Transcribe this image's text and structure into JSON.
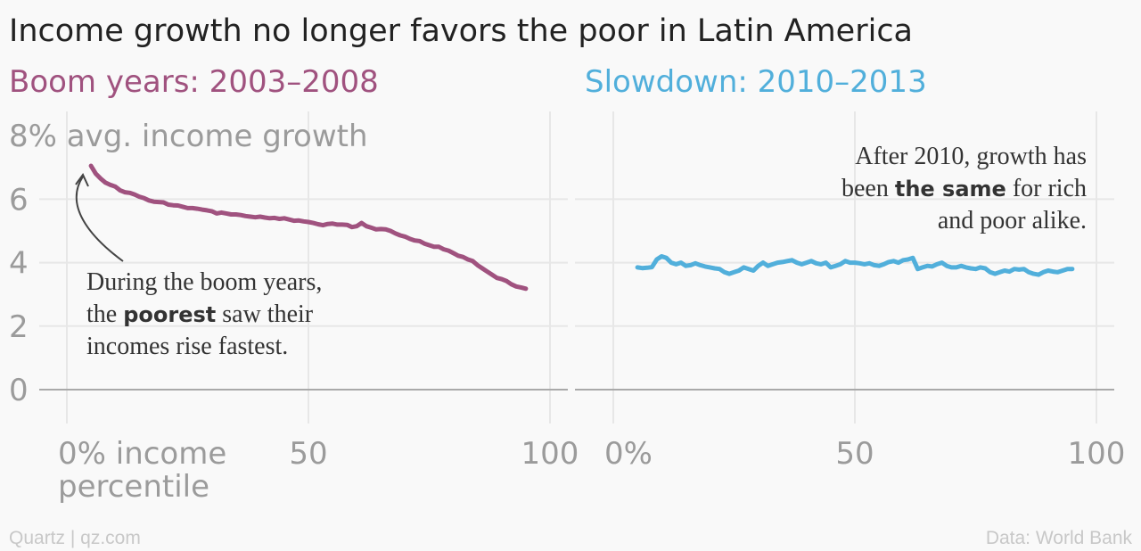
{
  "title": "Income growth no longer favors the poor in Latin America",
  "footer": {
    "left": "Quartz | qz.com",
    "right": "Data: World Bank"
  },
  "colors": {
    "boom": "#a0527f",
    "slowdown": "#51afdb",
    "tick": "#9b9b9b",
    "grid": "#e7e7e7",
    "baseline": "#a9a9a9"
  },
  "chart_data": [
    {
      "type": "line",
      "subtitle": "Boom years: 2003–2008",
      "xlabel": "0% income percentile",
      "x_ticks": [
        {
          "value": 0,
          "label": "0% income"
        },
        {
          "value": 50,
          "label": "50"
        },
        {
          "value": 100,
          "label": "100"
        }
      ],
      "x_tick_sub": "percentile",
      "y_ticks": [
        {
          "value": 0,
          "label": "0"
        },
        {
          "value": 2,
          "label": "2"
        },
        {
          "value": 4,
          "label": "4"
        },
        {
          "value": 6,
          "label": "6"
        },
        {
          "value": 8,
          "label": "8% avg. income growth"
        }
      ],
      "xlim": [
        -5,
        105
      ],
      "ylim": [
        -0.8,
        8.8
      ],
      "grid": true,
      "annotation": {
        "before": "During the boom years,",
        "line2_pre": "the ",
        "line2_bold": "poorest",
        "line2_post": " saw their",
        "line3": "incomes rise fastest."
      },
      "series": [
        {
          "x": [
            5,
            6,
            7,
            8,
            9,
            10,
            11,
            12,
            13,
            14,
            15,
            16,
            17,
            18,
            19,
            20,
            21,
            22,
            23,
            24,
            25,
            26,
            27,
            28,
            29,
            30,
            31,
            32,
            33,
            34,
            35,
            36,
            37,
            38,
            39,
            40,
            41,
            42,
            43,
            44,
            45,
            46,
            47,
            48,
            49,
            50,
            51,
            52,
            53,
            54,
            55,
            56,
            57,
            58,
            59,
            60,
            61,
            62,
            63,
            64,
            65,
            66,
            67,
            68,
            69,
            70,
            71,
            72,
            73,
            74,
            75,
            76,
            77,
            78,
            79,
            80,
            81,
            82,
            83,
            84,
            85,
            86,
            87,
            88,
            89,
            90,
            91,
            92,
            93,
            94,
            95
          ],
          "y": [
            7.05,
            6.8,
            6.65,
            6.52,
            6.45,
            6.4,
            6.28,
            6.22,
            6.2,
            6.15,
            6.08,
            6.03,
            5.96,
            5.92,
            5.91,
            5.9,
            5.83,
            5.81,
            5.8,
            5.76,
            5.72,
            5.72,
            5.7,
            5.67,
            5.65,
            5.62,
            5.55,
            5.58,
            5.55,
            5.52,
            5.52,
            5.5,
            5.47,
            5.45,
            5.43,
            5.45,
            5.42,
            5.4,
            5.41,
            5.38,
            5.4,
            5.36,
            5.32,
            5.33,
            5.3,
            5.28,
            5.25,
            5.21,
            5.18,
            5.22,
            5.23,
            5.2,
            5.2,
            5.19,
            5.12,
            5.15,
            5.25,
            5.15,
            5.1,
            5.05,
            5.06,
            5.05,
            5.0,
            4.92,
            4.86,
            4.82,
            4.75,
            4.7,
            4.68,
            4.6,
            4.55,
            4.5,
            4.5,
            4.42,
            4.38,
            4.3,
            4.22,
            4.18,
            4.1,
            4.05,
            3.92,
            3.82,
            3.72,
            3.62,
            3.52,
            3.48,
            3.42,
            3.32,
            3.25,
            3.22,
            3.18
          ]
        }
      ]
    },
    {
      "type": "line",
      "subtitle": "Slowdown: 2010–2013",
      "x_ticks": [
        {
          "value": 0,
          "label": "0%"
        },
        {
          "value": 50,
          "label": "50"
        },
        {
          "value": 100,
          "label": "100"
        }
      ],
      "y_ticks": [
        {
          "value": 0
        },
        {
          "value": 2
        },
        {
          "value": 4
        },
        {
          "value": 6
        },
        {
          "value": 8
        }
      ],
      "xlim": [
        -5,
        105
      ],
      "ylim": [
        -0.8,
        8.8
      ],
      "grid": true,
      "annotation": {
        "line1": "After 2010, growth has",
        "line2_pre": "been ",
        "line2_bold": "the same",
        "line2_post": " for rich",
        "line3": "and poor alike."
      },
      "series": [
        {
          "x": [
            5,
            6,
            7,
            8,
            9,
            10,
            11,
            12,
            13,
            14,
            15,
            16,
            17,
            18,
            19,
            20,
            21,
            22,
            23,
            24,
            25,
            26,
            27,
            28,
            29,
            30,
            31,
            32,
            33,
            34,
            35,
            36,
            37,
            38,
            39,
            40,
            41,
            42,
            43,
            44,
            45,
            46,
            47,
            48,
            49,
            50,
            51,
            52,
            53,
            54,
            55,
            56,
            57,
            58,
            59,
            60,
            61,
            62,
            63,
            64,
            65,
            66,
            67,
            68,
            69,
            70,
            71,
            72,
            73,
            74,
            75,
            76,
            77,
            78,
            79,
            80,
            81,
            82,
            83,
            84,
            85,
            86,
            87,
            88,
            89,
            90,
            91,
            92,
            93,
            94,
            95
          ],
          "y": [
            3.85,
            3.83,
            3.84,
            3.86,
            4.1,
            4.2,
            4.15,
            4.0,
            3.95,
            4.0,
            3.9,
            3.92,
            3.98,
            3.92,
            3.88,
            3.85,
            3.82,
            3.8,
            3.7,
            3.65,
            3.7,
            3.75,
            3.85,
            3.8,
            3.75,
            3.9,
            4.0,
            3.9,
            3.95,
            4.0,
            4.02,
            4.05,
            4.08,
            4.0,
            3.95,
            4.0,
            4.05,
            3.98,
            3.95,
            4.0,
            3.85,
            3.9,
            3.95,
            4.05,
            4.0,
            4.0,
            3.98,
            3.95,
            3.98,
            3.92,
            3.9,
            3.95,
            4.02,
            4.05,
            4.0,
            4.08,
            4.1,
            4.15,
            3.8,
            3.85,
            3.9,
            3.88,
            3.95,
            4.0,
            3.9,
            3.85,
            3.85,
            3.9,
            3.85,
            3.82,
            3.8,
            3.85,
            3.82,
            3.7,
            3.65,
            3.7,
            3.75,
            3.72,
            3.8,
            3.78,
            3.8,
            3.7,
            3.65,
            3.62,
            3.7,
            3.75,
            3.72,
            3.7,
            3.75,
            3.8,
            3.8
          ]
        }
      ]
    }
  ]
}
